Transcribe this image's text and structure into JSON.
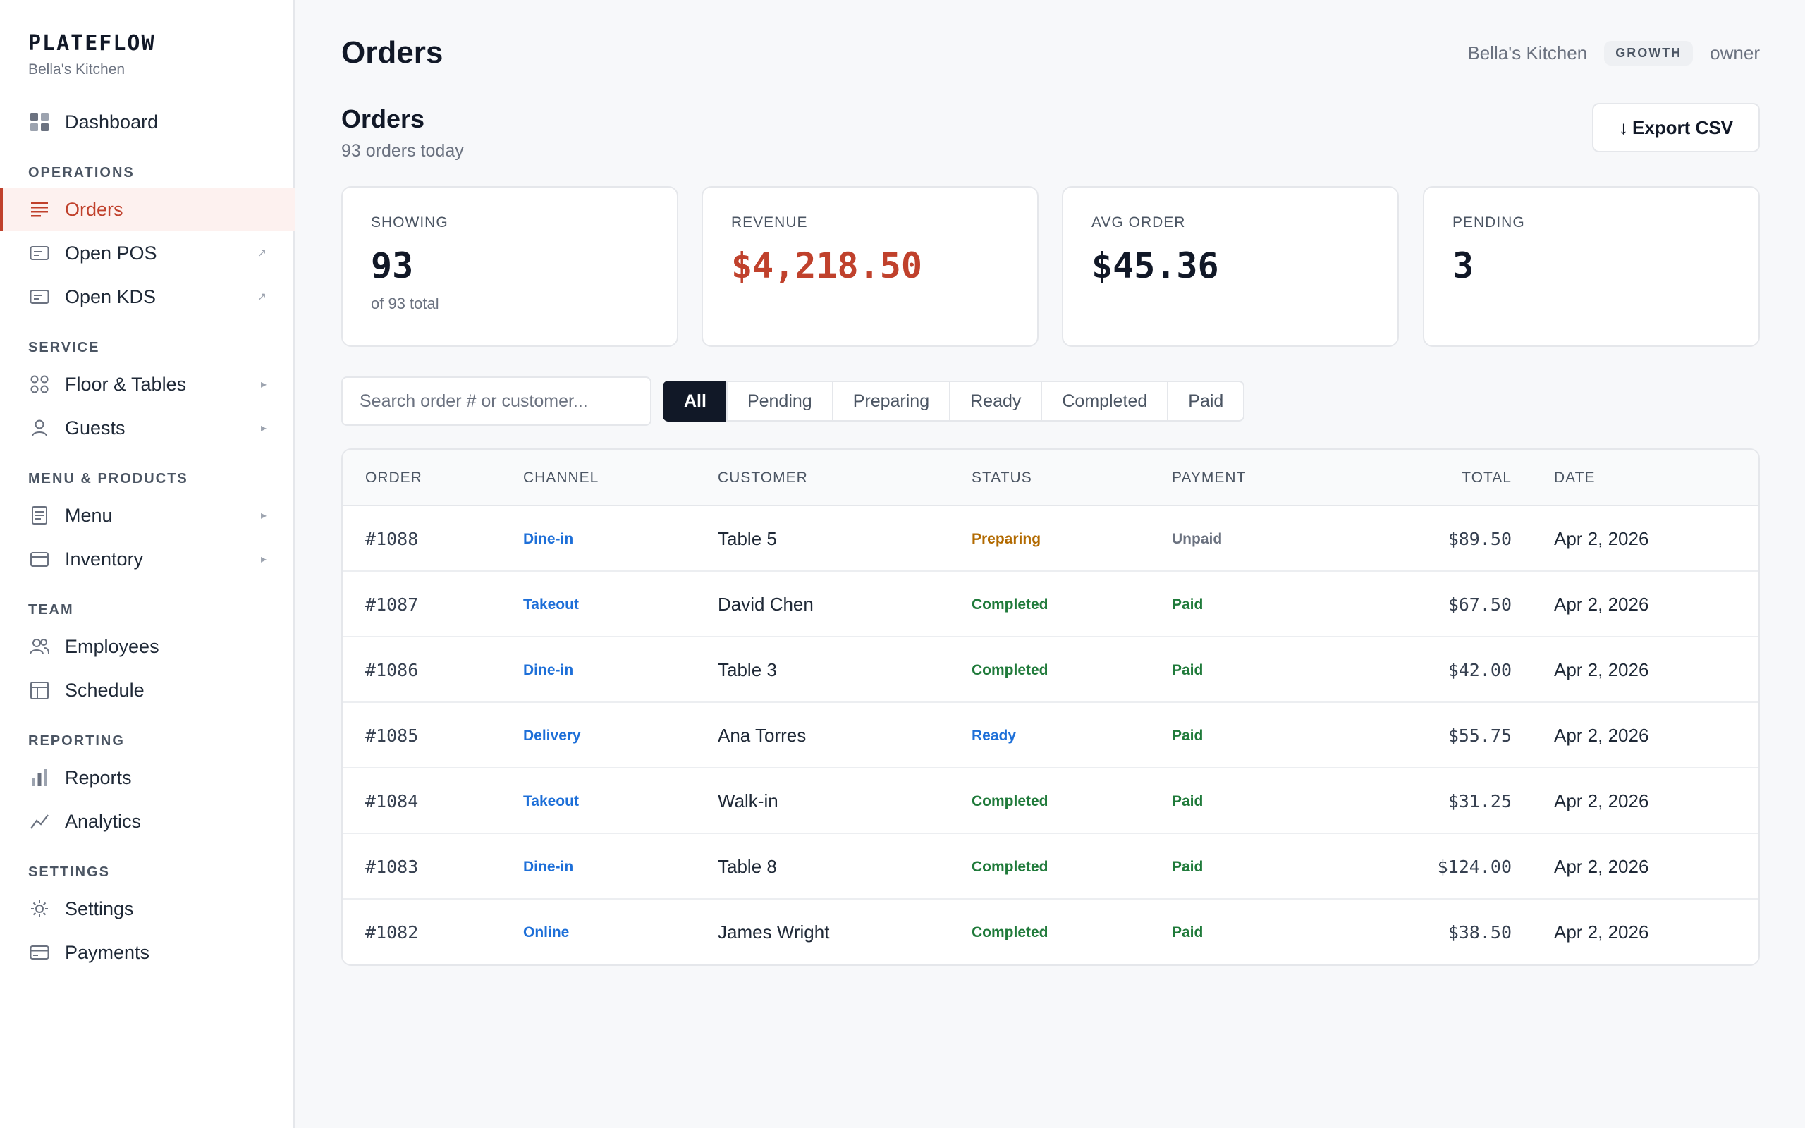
{
  "brand": {
    "name": "PLATEFLOW",
    "subtitle": "Bella's Kitchen"
  },
  "sidebar": {
    "dashboard": "Dashboard",
    "sections": {
      "operations": "OPERATIONS",
      "service": "SERVICE",
      "menu_products": "MENU & PRODUCTS",
      "team": "TEAM",
      "reporting": "REPORTING",
      "settings": "SETTINGS"
    },
    "items": {
      "orders": "Orders",
      "open_pos": "Open POS",
      "open_kds": "Open KDS",
      "floor_tables": "Floor & Tables",
      "guests": "Guests",
      "menu": "Menu",
      "inventory": "Inventory",
      "employees": "Employees",
      "schedule": "Schedule",
      "reports": "Reports",
      "analytics": "Analytics",
      "settings": "Settings",
      "payments": "Payments"
    },
    "external_glyph": "↗",
    "expand_glyph": "▸"
  },
  "header": {
    "title": "Orders",
    "kitchen": "Bella's Kitchen",
    "plan": "GROWTH",
    "role": "owner"
  },
  "section": {
    "title": "Orders",
    "subtitle": "93 orders today",
    "export_label": "Export CSV",
    "export_glyph": "↓"
  },
  "stats": {
    "showing": {
      "label": "SHOWING",
      "value": "93",
      "sub": "of 93 total"
    },
    "revenue": {
      "label": "REVENUE",
      "value": "$4,218.50"
    },
    "avg_order": {
      "label": "AVG ORDER",
      "value": "$45.36"
    },
    "pending": {
      "label": "PENDING",
      "value": "3"
    }
  },
  "search": {
    "placeholder": "Search order # or customer..."
  },
  "filters": [
    "All",
    "Pending",
    "Preparing",
    "Ready",
    "Completed",
    "Paid"
  ],
  "table": {
    "columns": {
      "order": "ORDER",
      "channel": "CHANNEL",
      "customer": "CUSTOMER",
      "status": "STATUS",
      "payment": "PAYMENT",
      "total": "TOTAL",
      "date": "DATE"
    },
    "rows": [
      {
        "order": "#1088",
        "channel": "Dine-in",
        "customer": "Table 5",
        "status": "Preparing",
        "payment": "Unpaid",
        "total": "$89.50",
        "date": "Apr 2, 2026"
      },
      {
        "order": "#1087",
        "channel": "Takeout",
        "customer": "David Chen",
        "status": "Completed",
        "payment": "Paid",
        "total": "$67.50",
        "date": "Apr 2, 2026"
      },
      {
        "order": "#1086",
        "channel": "Dine-in",
        "customer": "Table 3",
        "status": "Completed",
        "payment": "Paid",
        "total": "$42.00",
        "date": "Apr 2, 2026"
      },
      {
        "order": "#1085",
        "channel": "Delivery",
        "customer": "Ana Torres",
        "status": "Ready",
        "payment": "Paid",
        "total": "$55.75",
        "date": "Apr 2, 2026"
      },
      {
        "order": "#1084",
        "channel": "Takeout",
        "customer": "Walk-in",
        "status": "Completed",
        "payment": "Paid",
        "total": "$31.25",
        "date": "Apr 2, 2026"
      },
      {
        "order": "#1083",
        "channel": "Dine-in",
        "customer": "Table 8",
        "status": "Completed",
        "payment": "Paid",
        "total": "$124.00",
        "date": "Apr 2, 2026"
      },
      {
        "order": "#1082",
        "channel": "Online",
        "customer": "James Wright",
        "status": "Completed",
        "payment": "Paid",
        "total": "$38.50",
        "date": "Apr 2, 2026"
      }
    ]
  },
  "colors": {
    "accent": "#c0412c",
    "channel": "#1d6fd8",
    "preparing": "#b26a00",
    "completed": "#1f7a3a",
    "ready": "#1d6fd8",
    "paid": "#1f7a3a",
    "unpaid": "#6b7280"
  }
}
